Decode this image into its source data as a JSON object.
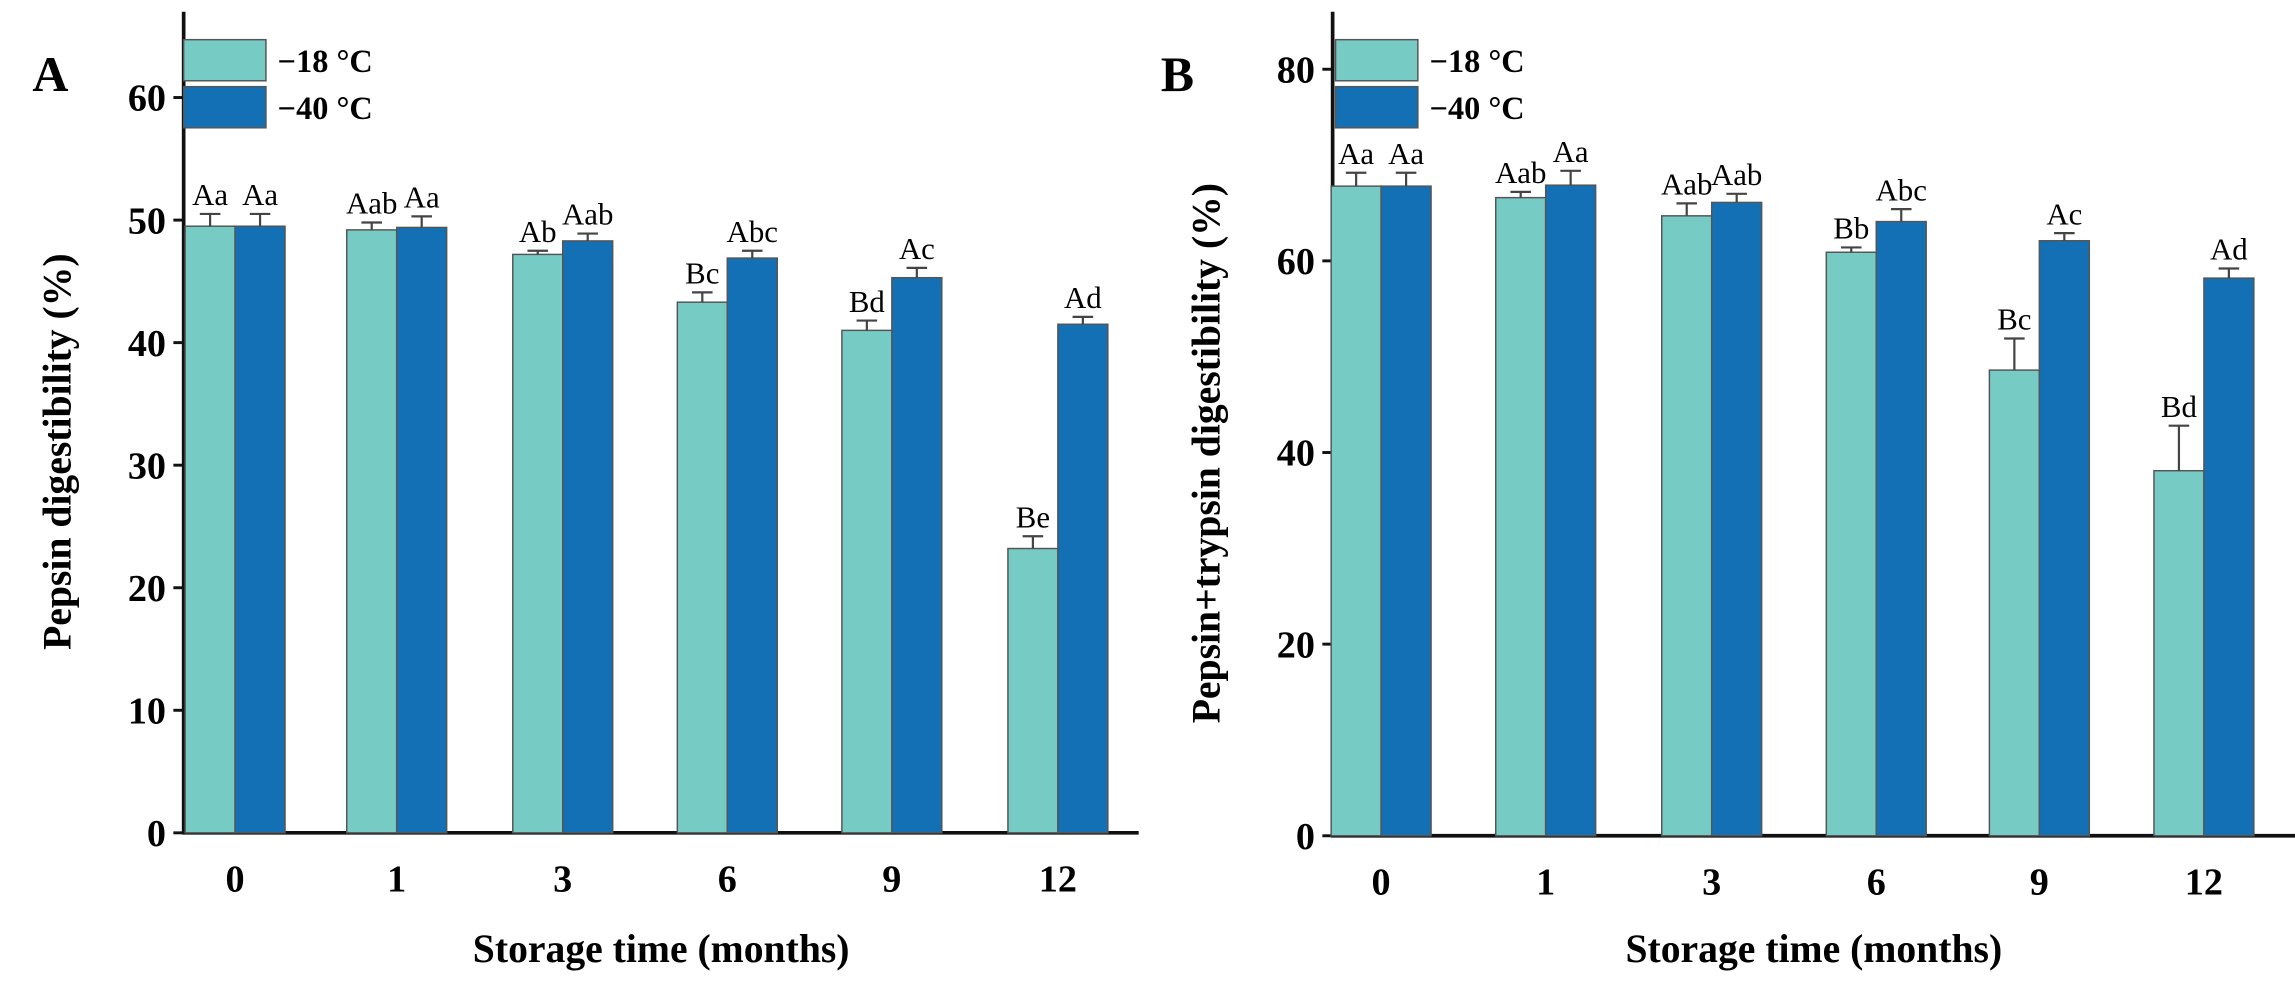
{
  "colors": {
    "s18": "#76CBC5",
    "s40": "#1470B4",
    "edge": "#555555"
  },
  "chart_data": [
    {
      "panel": "A",
      "type": "bar",
      "xlabel": "Storage time (months)",
      "ylabel": "Pepsin digestibility (%)",
      "ylim": [
        0,
        67
      ],
      "yticks": [
        0,
        10,
        20,
        30,
        40,
        50,
        60
      ],
      "categories": [
        "0",
        "1",
        "3",
        "6",
        "9",
        "12"
      ],
      "legend": "top-left",
      "series": [
        {
          "name": "−18 °C",
          "values": [
            49.5,
            49.2,
            47.2,
            43.3,
            41.0,
            23.2
          ],
          "errors": [
            1.0,
            0.6,
            0.3,
            0.8,
            0.8,
            1.0
          ],
          "labels": [
            "Aa",
            "Aab",
            "Ab",
            "Bc",
            "Bd",
            "Be"
          ]
        },
        {
          "name": "−40 °C",
          "values": [
            49.5,
            49.4,
            48.3,
            46.9,
            45.3,
            41.5
          ],
          "errors": [
            1.0,
            0.9,
            0.6,
            0.6,
            0.8,
            0.6
          ],
          "labels": [
            "Aa",
            "Aa",
            "Aab",
            "Abc",
            "Ac",
            "Ad"
          ]
        }
      ]
    },
    {
      "panel": "B",
      "type": "bar",
      "xlabel": "Storage time (months)",
      "ylabel": "Pepsin+trypsin digestibility (%)",
      "ylim": [
        0,
        86
      ],
      "yticks": [
        0,
        20,
        40,
        60,
        80
      ],
      "categories": [
        "0",
        "1",
        "3",
        "6",
        "9",
        "12"
      ],
      "legend": "top-left",
      "series": [
        {
          "name": "−18 °C",
          "values": [
            67.8,
            66.6,
            64.7,
            60.9,
            48.6,
            38.1
          ],
          "errors": [
            1.4,
            0.6,
            1.3,
            0.5,
            3.3,
            4.7
          ],
          "labels": [
            "Aa",
            "Aab",
            "Aab",
            "Bb",
            "Bc",
            "Bd"
          ]
        },
        {
          "name": "−40 °C",
          "values": [
            67.8,
            67.9,
            66.1,
            64.1,
            62.1,
            58.2
          ],
          "errors": [
            1.4,
            1.5,
            0.9,
            1.3,
            0.8,
            1.0
          ],
          "labels": [
            "Aa",
            "Aa",
            "Aab",
            "Abc",
            "Ac",
            "Ad"
          ]
        }
      ]
    }
  ]
}
